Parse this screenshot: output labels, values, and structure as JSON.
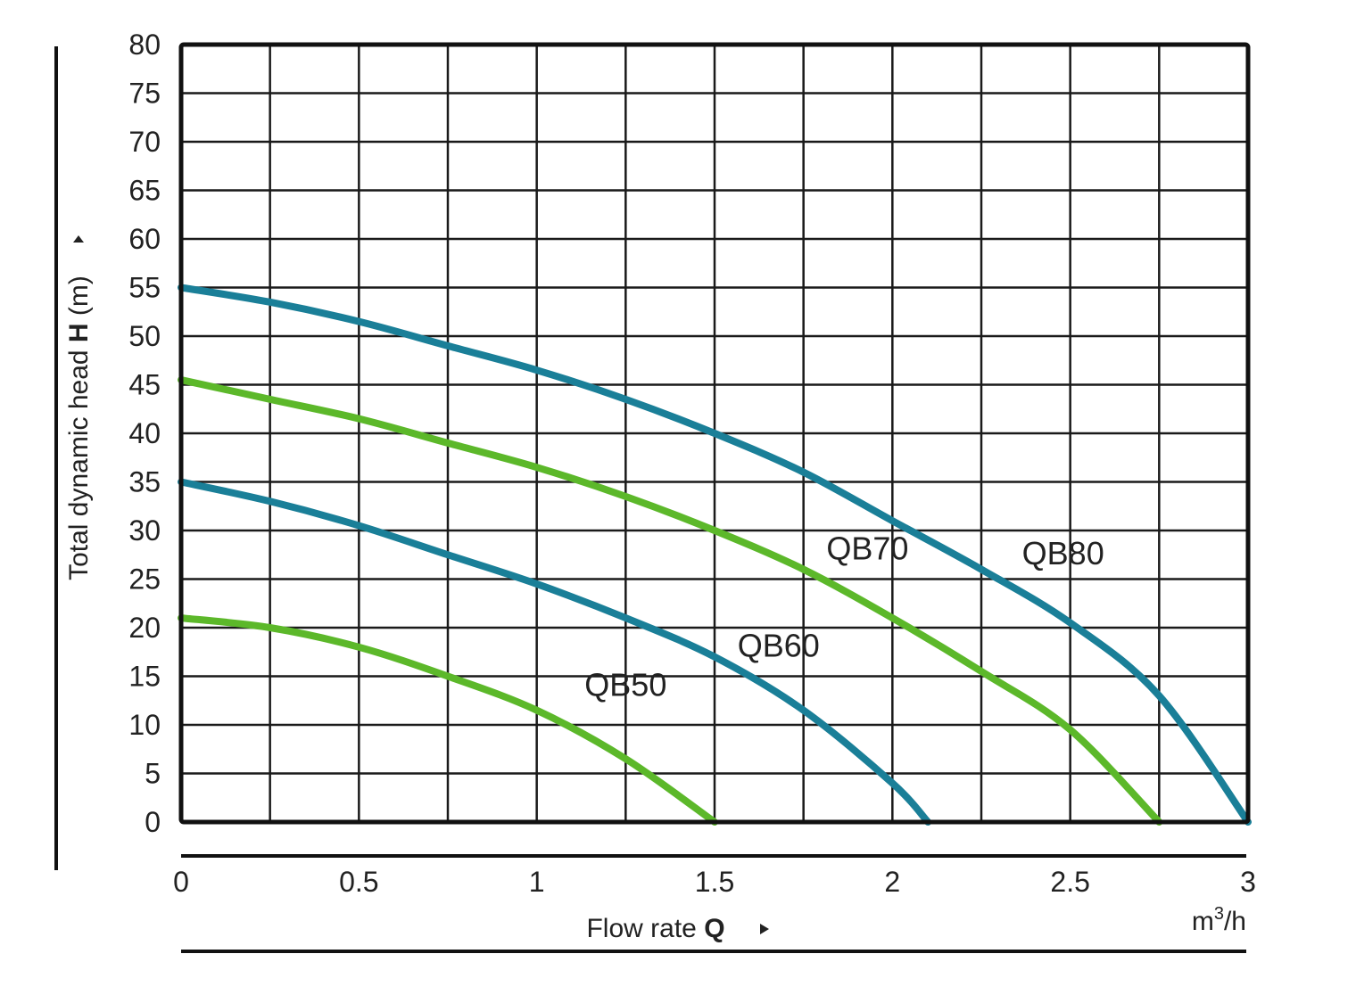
{
  "chart_data": {
    "type": "line",
    "xlabel_prefix": "Flow rate",
    "xlabel_symbol": "Q",
    "x_unit_base": "m",
    "x_unit_exp": "3",
    "x_unit_rest": "/h",
    "ylabel_prefix": "Total dynamic head",
    "ylabel_symbol": "H",
    "ylabel_suffix": "(m)",
    "xlim": [
      0,
      3
    ],
    "ylim": [
      0,
      80
    ],
    "x_ticks": [
      0,
      0.5,
      1,
      1.5,
      2,
      2.5,
      3
    ],
    "x_tick_labels": [
      "0",
      "0.5",
      "1",
      "1.5",
      "2",
      "2.5",
      "3"
    ],
    "y_ticks": [
      0,
      5,
      10,
      15,
      20,
      25,
      30,
      35,
      40,
      45,
      50,
      55,
      60,
      65,
      70,
      75,
      80
    ],
    "x_grid_step": 0.25,
    "y_grid_step": 5,
    "grid": true,
    "colors": {
      "teal": "#1a7f98",
      "green": "#5cb82a",
      "grid": "#1a1a1a"
    },
    "series": [
      {
        "name": "QB50",
        "color": "#5cb82a",
        "x": [
          0,
          0.25,
          0.5,
          0.75,
          1.0,
          1.25,
          1.5
        ],
        "y": [
          21,
          20,
          18,
          15,
          11.5,
          6.5,
          0
        ]
      },
      {
        "name": "QB60",
        "color": "#1a7f98",
        "x": [
          0,
          0.25,
          0.5,
          0.75,
          1.0,
          1.25,
          1.5,
          1.75,
          2.0,
          2.1
        ],
        "y": [
          35,
          33,
          30.5,
          27.5,
          24.5,
          21,
          17,
          11.5,
          4,
          0
        ]
      },
      {
        "name": "QB70",
        "color": "#5cb82a",
        "x": [
          0,
          0.25,
          0.5,
          0.75,
          1.0,
          1.25,
          1.5,
          1.75,
          2.0,
          2.25,
          2.5,
          2.75
        ],
        "y": [
          45.5,
          43.5,
          41.5,
          39,
          36.5,
          33.5,
          30,
          26,
          21,
          15.5,
          9.5,
          0
        ]
      },
      {
        "name": "QB80",
        "color": "#1a7f98",
        "x": [
          0,
          0.25,
          0.5,
          0.75,
          1.0,
          1.25,
          1.5,
          1.75,
          2.0,
          2.25,
          2.5,
          2.75,
          3.0
        ],
        "y": [
          55,
          53.5,
          51.5,
          49,
          46.5,
          43.5,
          40,
          36,
          31,
          26,
          20.5,
          13,
          0
        ]
      }
    ],
    "curve_labels": [
      {
        "text": "QB50",
        "x": 1.25,
        "y": 13
      },
      {
        "text": "QB60",
        "x": 1.68,
        "y": 17
      },
      {
        "text": "QB70",
        "x": 1.93,
        "y": 27
      },
      {
        "text": "QB80",
        "x": 2.48,
        "y": 26.5
      }
    ]
  }
}
